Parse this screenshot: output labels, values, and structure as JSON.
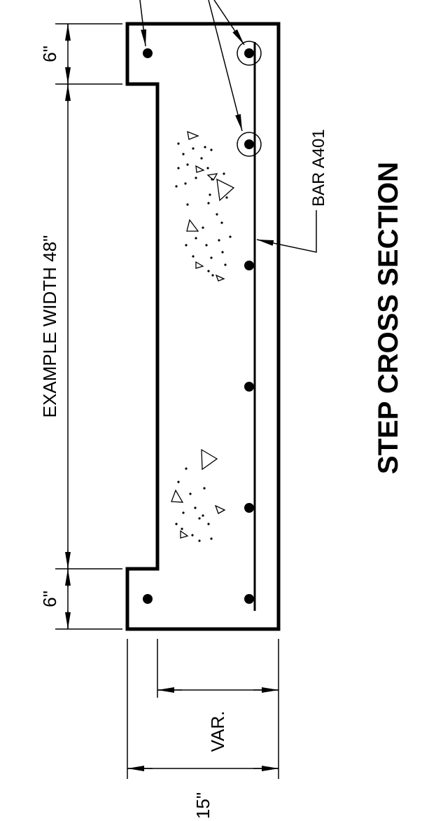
{
  "drawing": {
    "title": "STEP CROSS SECTION",
    "labels": {
      "dim_top": "6\"",
      "dim_bottom": "6\"",
      "dim_width": "EXAMPLE WIDTH 48\"",
      "bar": "BAR A401",
      "dim_var": "VAR.",
      "dim_total": "15\""
    }
  }
}
